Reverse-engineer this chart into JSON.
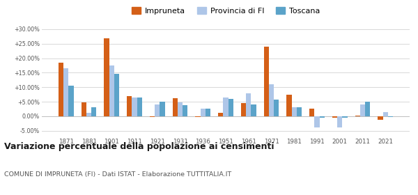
{
  "years": [
    1871,
    1881,
    1901,
    1911,
    1921,
    1931,
    1936,
    1951,
    1961,
    1971,
    1981,
    1991,
    2001,
    2011,
    2021
  ],
  "impruneta": [
    18.5,
    4.8,
    26.8,
    7.0,
    -0.3,
    6.2,
    -0.2,
    1.1,
    4.5,
    24.0,
    7.3,
    2.6,
    -0.5,
    0.2,
    -1.2
  ],
  "provincia_fi": [
    16.5,
    1.2,
    17.5,
    6.5,
    4.0,
    4.7,
    2.6,
    6.5,
    7.8,
    11.0,
    3.2,
    -3.8,
    -3.8,
    4.0,
    1.3
  ],
  "toscana": [
    10.5,
    3.0,
    14.5,
    6.5,
    5.1,
    3.7,
    2.7,
    6.0,
    4.0,
    5.7,
    3.1,
    -0.5,
    -0.6,
    5.0,
    -0.3
  ],
  "color_impruneta": "#d45f17",
  "color_provincia": "#aec6e8",
  "color_toscana": "#5ba3c9",
  "title": "Variazione percentuale della popolazione ai censimenti",
  "subtitle": "COMUNE DI IMPRUNETA (FI) - Dati ISTAT - Elaborazione TUTTITALIA.IT",
  "ylim_min": -7,
  "ylim_max": 32,
  "yticks": [
    -5,
    0,
    5,
    10,
    15,
    20,
    25,
    30
  ],
  "ytick_labels": [
    "-5.00%",
    "0.00%",
    "+5.00%",
    "+10.00%",
    "+15.00%",
    "+20.00%",
    "+25.00%",
    "+30.00%"
  ],
  "background_color": "#ffffff",
  "grid_color": "#d8d8d8"
}
